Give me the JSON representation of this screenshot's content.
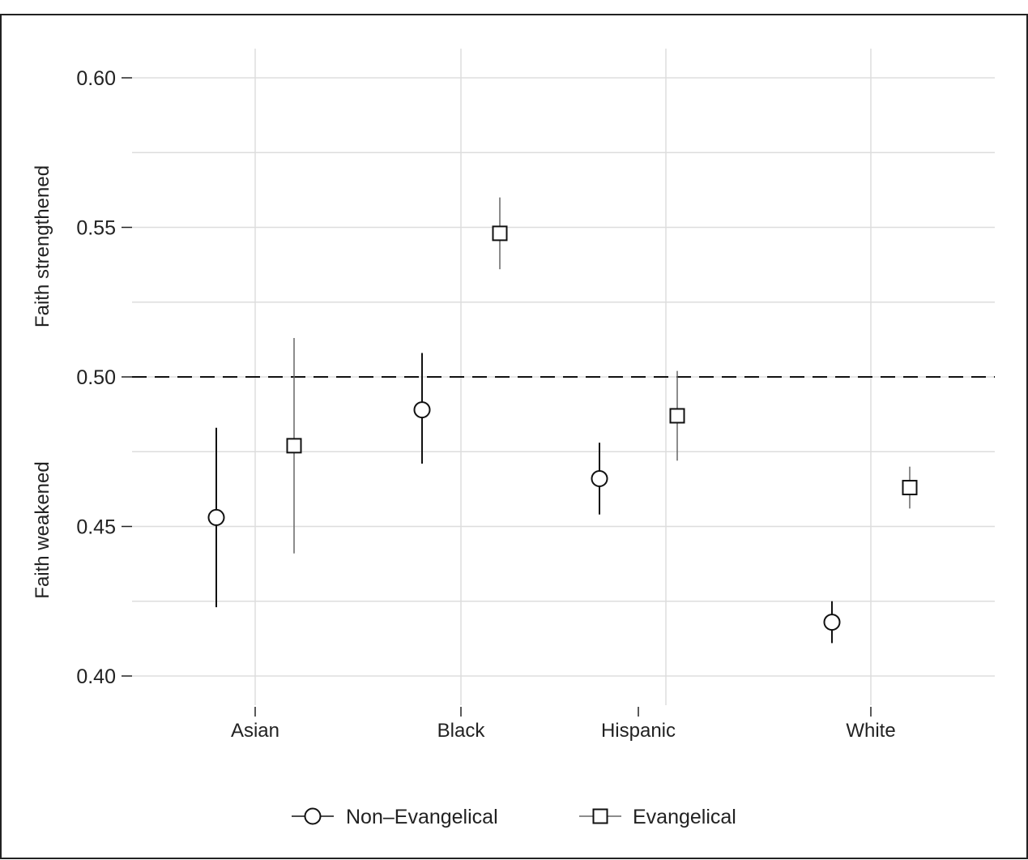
{
  "chart_data": {
    "type": "scatter",
    "title": "",
    "xlabel": "",
    "ylabel_top": "Faith strengthened",
    "ylabel_bottom": "Faith weakened",
    "ylim": [
      0.4,
      0.6
    ],
    "yticks": [
      0.4,
      0.45,
      0.5,
      0.55,
      0.6
    ],
    "ytick_labels": [
      "0.40",
      "0.45",
      "0.50",
      "0.55",
      "0.60"
    ],
    "reference_line": 0.5,
    "grid": true,
    "legend_position": "bottom",
    "categories": [
      "Asian",
      "Black",
      "Hispanic",
      "White"
    ],
    "series": [
      {
        "name": "Non–Evangelical",
        "marker": "circle",
        "color": "#111111",
        "values": [
          0.453,
          0.489,
          0.466,
          0.418
        ],
        "lower": [
          0.423,
          0.471,
          0.454,
          0.411
        ],
        "upper": [
          0.483,
          0.508,
          0.478,
          0.425
        ]
      },
      {
        "name": "Evangelical",
        "marker": "square",
        "color": "#666666",
        "values": [
          0.477,
          0.548,
          0.487,
          0.463
        ],
        "lower": [
          0.441,
          0.536,
          0.472,
          0.456
        ],
        "upper": [
          0.513,
          0.56,
          0.502,
          0.47
        ]
      }
    ]
  }
}
